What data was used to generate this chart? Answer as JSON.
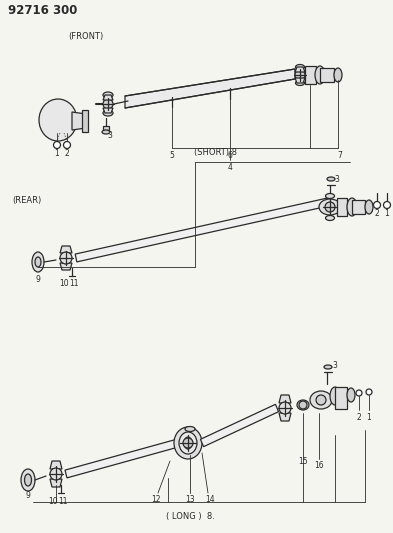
{
  "title": "92716 300",
  "bg": "#f5f5f0",
  "lc": "#2a2a2a",
  "sections": {
    "front_label": "(FRONT)",
    "rear_label": "(REAR)",
    "short_label": "(SHORT) 8",
    "long_label": "( LONG )  8."
  }
}
